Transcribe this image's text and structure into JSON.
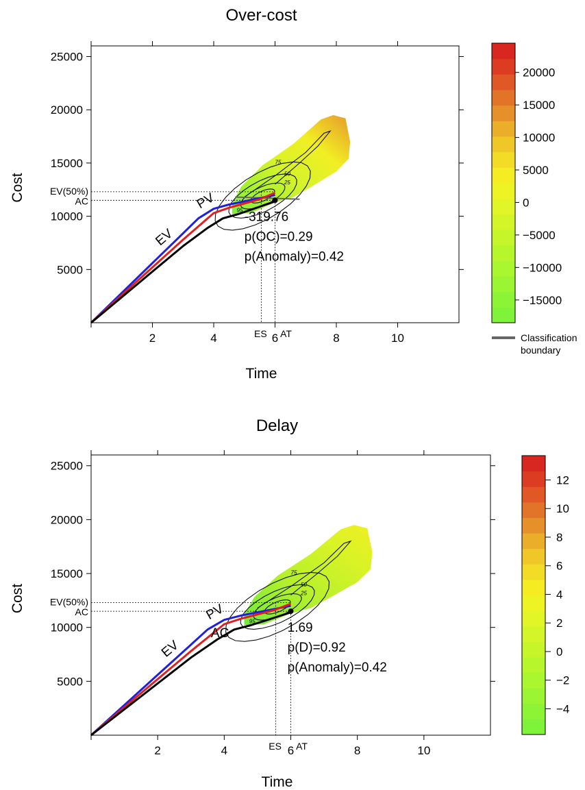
{
  "chart_data": [
    {
      "type": "line",
      "title": "Over-cost",
      "xlabel": "Time",
      "ylabel": "Cost",
      "xlim": [
        0,
        12
      ],
      "ylim": [
        0,
        26000
      ],
      "xticks": [
        2,
        4,
        6,
        8,
        10
      ],
      "yticks": [
        5000,
        10000,
        15000,
        20000,
        25000
      ],
      "series": [
        {
          "name": "PV",
          "color": "#1f1fe0",
          "x": [
            0,
            1,
            2,
            3,
            3.5,
            4,
            4.5,
            5,
            5.5,
            6
          ],
          "y": [
            0,
            2800,
            5600,
            8400,
            9800,
            10700,
            11100,
            11400,
            11700,
            12000
          ]
        },
        {
          "name": "EV",
          "color": "#e02020",
          "x": [
            0,
            1,
            2,
            3,
            3.6,
            4,
            4.5,
            5,
            5.5,
            6
          ],
          "y": [
            0,
            2600,
            5200,
            7800,
            9300,
            10300,
            10800,
            11200,
            11600,
            12200
          ]
        },
        {
          "name": "AC",
          "color": "#000000",
          "x": [
            0,
            1,
            2,
            3,
            3.8,
            4.3,
            4.8,
            5.2,
            5.6,
            6
          ],
          "y": [
            0,
            2400,
            4800,
            7200,
            8900,
            9800,
            10200,
            10600,
            11000,
            11400
          ]
        }
      ],
      "series_labels": {
        "pv": "PV",
        "ev": "EV"
      },
      "reference_lines": {
        "ev_label": "EV(50%)",
        "ev_value": 12300,
        "ac_label": "AC",
        "ac_value": 11500,
        "es_label": "ES",
        "es_time": 5.55,
        "at_label": "AT",
        "at_time": 6.0
      },
      "annotations": [
        "-319.76",
        "p(OC)=0.29",
        "p(Anomaly)=0.42"
      ],
      "contour_labels": [
        "75",
        "50",
        "25",
        "95"
      ],
      "colorbar": {
        "min": -18500,
        "max": 24500,
        "ticks": [
          20000,
          15000,
          10000,
          5000,
          0,
          -5000,
          -10000,
          -15000
        ]
      },
      "legend": {
        "label_line1": "Classification",
        "label_line2": "boundary",
        "color": "#666666"
      }
    },
    {
      "type": "line",
      "title": "Delay",
      "xlabel": "Time",
      "ylabel": "Cost",
      "xlim": [
        0,
        12
      ],
      "ylim": [
        0,
        26000
      ],
      "xticks": [
        2,
        4,
        6,
        8,
        10
      ],
      "yticks": [
        5000,
        10000,
        15000,
        20000,
        25000
      ],
      "series": [
        {
          "name": "PV",
          "color": "#1f1fe0",
          "x": [
            0,
            1,
            2,
            3,
            3.5,
            4,
            4.5,
            5,
            5.5,
            6
          ],
          "y": [
            0,
            2800,
            5600,
            8400,
            9800,
            10700,
            11100,
            11400,
            11700,
            12000
          ]
        },
        {
          "name": "EV",
          "color": "#e02020",
          "x": [
            0,
            1,
            2,
            3,
            3.6,
            4,
            4.5,
            5,
            5.5,
            6
          ],
          "y": [
            0,
            2600,
            5200,
            7800,
            9300,
            10300,
            10800,
            11200,
            11600,
            12200
          ]
        },
        {
          "name": "AC",
          "color": "#000000",
          "x": [
            0,
            1,
            2,
            3,
            3.8,
            4.3,
            4.8,
            5.2,
            5.6,
            6
          ],
          "y": [
            0,
            2400,
            4800,
            7200,
            8900,
            9800,
            10200,
            10600,
            11000,
            11400
          ]
        }
      ],
      "series_labels": {
        "pv": "PV",
        "ev": "EV",
        "ac": "AC"
      },
      "reference_lines": {
        "ev_label": "EV(50%)",
        "ev_value": 12300,
        "ac_label": "AC",
        "ac_value": 11500,
        "es_label": "ES",
        "es_time": 5.55,
        "at_label": "AT",
        "at_time": 6.0
      },
      "annotations": [
        "1.69",
        "p(D)=0.92",
        "p(Anomaly)=0.42"
      ],
      "contour_labels": [
        "75",
        "50",
        "25",
        "95"
      ],
      "colorbar": {
        "min": -5.8,
        "max": 13.7,
        "ticks": [
          12,
          10,
          8,
          6,
          4,
          2,
          0,
          -2,
          -4
        ]
      }
    }
  ]
}
